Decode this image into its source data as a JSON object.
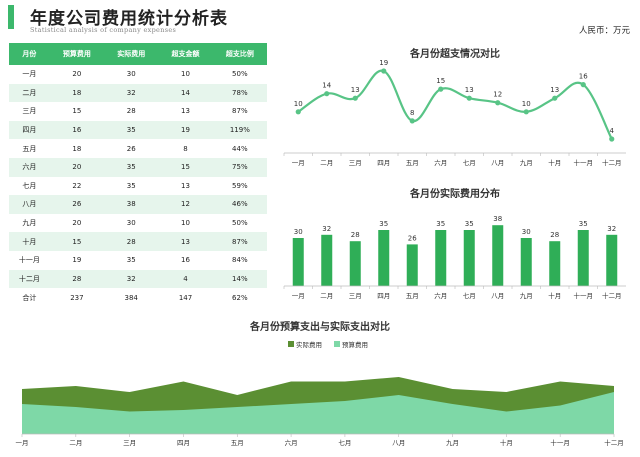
{
  "header": {
    "title": "年度公司费用统计分析表",
    "subtitle": "Statistical analysis of company expenses",
    "unit": "人民币：万元"
  },
  "colors": {
    "accent": "#3cb86c",
    "light_green": "#7ed8a7",
    "dark_green": "#5b8f33",
    "row_tint": "#e6f5ec"
  },
  "table": {
    "columns": [
      "月份",
      "预算费用",
      "实际费用",
      "超支金额",
      "超支比例"
    ],
    "rows": [
      [
        "一月",
        "20",
        "30",
        "10",
        "50%"
      ],
      [
        "二月",
        "18",
        "32",
        "14",
        "78%"
      ],
      [
        "三月",
        "15",
        "28",
        "13",
        "87%"
      ],
      [
        "四月",
        "16",
        "35",
        "19",
        "119%"
      ],
      [
        "五月",
        "18",
        "26",
        "8",
        "44%"
      ],
      [
        "六月",
        "20",
        "35",
        "15",
        "75%"
      ],
      [
        "七月",
        "22",
        "35",
        "13",
        "59%"
      ],
      [
        "八月",
        "26",
        "38",
        "12",
        "46%"
      ],
      [
        "九月",
        "20",
        "30",
        "10",
        "50%"
      ],
      [
        "十月",
        "15",
        "28",
        "13",
        "87%"
      ],
      [
        "十一月",
        "19",
        "35",
        "16",
        "84%"
      ],
      [
        "十二月",
        "28",
        "32",
        "4",
        "14%"
      ]
    ],
    "total": [
      "合计",
      "237",
      "384",
      "147",
      "62%"
    ]
  },
  "chart_data": [
    {
      "type": "line",
      "title": "各月份超支情况对比",
      "categories": [
        "一月",
        "二月",
        "三月",
        "四月",
        "五月",
        "六月",
        "七月",
        "八月",
        "九月",
        "十月",
        "十一月",
        "十二月"
      ],
      "values": [
        10,
        14,
        13,
        19,
        8,
        15,
        13,
        12,
        10,
        13,
        16,
        4
      ],
      "color": "#58c486",
      "grid": false
    },
    {
      "type": "bar",
      "title": "各月份实际费用分布",
      "categories": [
        "一月",
        "二月",
        "三月",
        "四月",
        "五月",
        "六月",
        "七月",
        "八月",
        "九月",
        "十月",
        "十一月",
        "十二月"
      ],
      "values": [
        30,
        32,
        28,
        35,
        26,
        35,
        35,
        38,
        30,
        28,
        35,
        32
      ],
      "color": "#2fae57",
      "grid": false
    },
    {
      "type": "area",
      "title": "各月份预算支出与实际支出对比",
      "legend_position": "top",
      "categories": [
        "一月",
        "二月",
        "三月",
        "四月",
        "五月",
        "六月",
        "七月",
        "八月",
        "九月",
        "十月",
        "十一月",
        "十二月"
      ],
      "series": [
        {
          "name": "实际费用",
          "values": [
            30,
            32,
            28,
            35,
            26,
            35,
            35,
            38,
            30,
            28,
            35,
            32
          ],
          "color": "#5b8f33"
        },
        {
          "name": "预算费用",
          "values": [
            20,
            18,
            15,
            16,
            18,
            20,
            22,
            26,
            20,
            15,
            19,
            28
          ],
          "color": "#7ed8a7"
        }
      ],
      "grid": false
    }
  ]
}
